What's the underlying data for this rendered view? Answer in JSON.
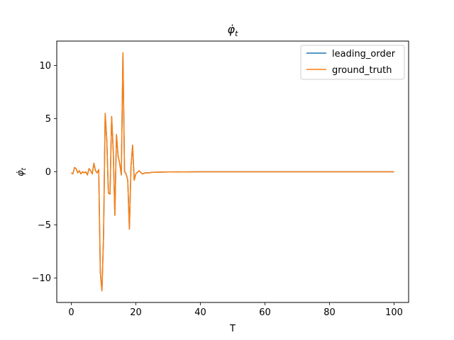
{
  "chart_data": {
    "type": "line",
    "title": "φ̇_t",
    "xlabel": "T",
    "ylabel": "φ̇_t",
    "xlim": [
      -4.5,
      104.5
    ],
    "ylim": [
      -12.3,
      12.3
    ],
    "xticks": [
      0,
      20,
      40,
      60,
      80,
      100
    ],
    "yticks": [
      -10,
      -5,
      0,
      5,
      10
    ],
    "xtick_labels": [
      "0",
      "20",
      "40",
      "60",
      "80",
      "100"
    ],
    "ytick_labels": [
      "−10",
      "−5",
      "0",
      "5",
      "10"
    ],
    "grid": false,
    "legend_position": "top-right",
    "series": [
      {
        "name": "leading_order",
        "color": "#1f77b4",
        "x": [
          0,
          0.5,
          1,
          1.5,
          2,
          2.5,
          3,
          3.5,
          4,
          4.5,
          5,
          5.5,
          6,
          6.5,
          7,
          7.5,
          8,
          8.5,
          9,
          9.5,
          10,
          10.5,
          11,
          11.5,
          12,
          12.5,
          13,
          13.5,
          14,
          14.5,
          15,
          15.5,
          16,
          16.5,
          17,
          17.5,
          18,
          18.5,
          19,
          19.5,
          20,
          21,
          22,
          23,
          24,
          25,
          30,
          40,
          50,
          60,
          70,
          80,
          90,
          100
        ],
        "y": [
          -0.1,
          -0.2,
          0.4,
          0.3,
          -0.1,
          0.1,
          -0.2,
          0.0,
          -0.1,
          0.0,
          -0.3,
          0.3,
          0.1,
          -0.2,
          0.8,
          0.1,
          -0.1,
          0.2,
          -9.5,
          -11.2,
          -6.0,
          5.5,
          3.0,
          -2.0,
          -2.1,
          5.2,
          2.0,
          -4.1,
          3.5,
          1.5,
          0.8,
          -0.3,
          11.2,
          0.0,
          -0.2,
          -0.8,
          -5.4,
          0.5,
          2.5,
          -0.8,
          -0.2,
          0.1,
          -0.2,
          -0.1,
          -0.1,
          -0.05,
          -0.02,
          0.0,
          0.0,
          0.0,
          0.0,
          0.0,
          0.0,
          0.0
        ]
      },
      {
        "name": "ground_truth",
        "color": "#ff7f0e",
        "x": [
          0,
          0.5,
          1,
          1.5,
          2,
          2.5,
          3,
          3.5,
          4,
          4.5,
          5,
          5.5,
          6,
          6.5,
          7,
          7.5,
          8,
          8.5,
          9,
          9.5,
          10,
          10.5,
          11,
          11.5,
          12,
          12.5,
          13,
          13.5,
          14,
          14.5,
          15,
          15.5,
          16,
          16.5,
          17,
          17.5,
          18,
          18.5,
          19,
          19.5,
          20,
          21,
          22,
          23,
          24,
          25,
          30,
          40,
          50,
          60,
          70,
          80,
          90,
          100
        ],
        "y": [
          -0.1,
          -0.2,
          0.4,
          0.3,
          -0.1,
          0.1,
          -0.2,
          0.0,
          -0.1,
          0.0,
          -0.3,
          0.3,
          0.1,
          -0.2,
          0.8,
          0.1,
          -0.1,
          0.2,
          -9.5,
          -11.2,
          -6.0,
          5.5,
          3.0,
          -2.0,
          -2.1,
          5.2,
          2.0,
          -4.1,
          3.5,
          1.5,
          0.8,
          -0.3,
          11.2,
          0.0,
          -0.2,
          -0.8,
          -5.4,
          0.5,
          2.5,
          -0.8,
          -0.2,
          0.1,
          -0.2,
          -0.1,
          -0.1,
          -0.05,
          -0.02,
          0.0,
          0.0,
          0.0,
          0.0,
          0.0,
          0.0,
          0.0
        ]
      }
    ]
  }
}
